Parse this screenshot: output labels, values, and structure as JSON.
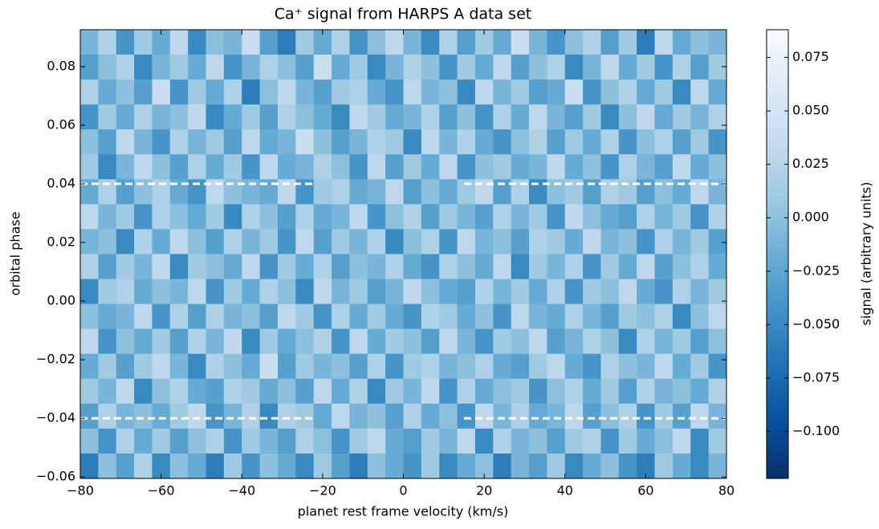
{
  "chart_data": {
    "type": "heatmap",
    "title": "Ca⁺ signal from HARPS A data set",
    "xlabel": "planet rest frame velocity (km/s)",
    "ylabel": "orbital phase",
    "colorbar_label": "signal (arbitrary units)",
    "xlim": [
      -80,
      80
    ],
    "ylim": [
      -0.0605,
      0.0926
    ],
    "clim": [
      -0.122,
      0.088
    ],
    "xticks": [
      {
        "value": -80,
        "label": "−80"
      },
      {
        "value": -60,
        "label": "−60"
      },
      {
        "value": -40,
        "label": "−40"
      },
      {
        "value": -20,
        "label": "−20"
      },
      0,
      20,
      40,
      60,
      80
    ],
    "yticks": [
      {
        "value": -0.06,
        "label": "−0.06"
      },
      {
        "value": -0.04,
        "label": "−0.04"
      },
      {
        "value": -0.02,
        "label": "−0.02"
      },
      {
        "value": 0,
        "label": "0.00"
      },
      {
        "value": 0.02,
        "label": "0.02"
      },
      {
        "value": 0.04,
        "label": "0.04"
      },
      {
        "value": 0.06,
        "label": "0.06"
      },
      {
        "value": 0.08,
        "label": "0.08"
      }
    ],
    "cticks": [
      {
        "value": -0.1,
        "label": "−0.100"
      },
      {
        "value": -0.075,
        "label": "−0.075"
      },
      {
        "value": -0.05,
        "label": "−0.050"
      },
      {
        "value": -0.025,
        "label": "−0.025"
      },
      {
        "value": 0,
        "label": "0.000"
      },
      {
        "value": 0.025,
        "label": "0.025"
      },
      {
        "value": 0.05,
        "label": "0.050"
      },
      {
        "value": 0.075,
        "label": "0.075"
      }
    ],
    "colormap": [
      "#08306b",
      "#08519c",
      "#2171b5",
      "#4292c6",
      "#6baed6",
      "#9ecae1",
      "#c6dbef",
      "#deebf7",
      "#f7fbff"
    ],
    "dash_color": "#ffffff",
    "dashes": [
      {
        "y": 0.04,
        "x0": -80,
        "x1": -22
      },
      {
        "y": 0.04,
        "x0": 15,
        "x1": 80
      },
      {
        "y": -0.04,
        "x0": -80,
        "x1": -22
      },
      {
        "y": -0.04,
        "x0": 15,
        "x1": 80
      }
    ],
    "z": [
      [
        -0.01,
        0.02,
        -0.04,
        0.01,
        -0.02,
        0.03,
        -0.05,
        0.0,
        -0.01,
        0.04,
        -0.03,
        -0.06,
        0.01,
        -0.02,
        0.02,
        -0.04,
        0.0,
        0.03,
        -0.01,
        -0.05,
        0.02,
        -0.03,
        0.01,
        -0.02,
        0.04,
        -0.01,
        -0.04,
        0.0,
        0.02,
        -0.03,
        0.01,
        -0.06,
        0.03,
        -0.02,
        0.0,
        -0.01
      ],
      [
        -0.03,
        0.0,
        0.02,
        -0.05,
        -0.01,
        0.01,
        -0.02,
        0.03,
        -0.04,
        -0.01,
        0.02,
        0.0,
        -0.03,
        0.04,
        -0.02,
        0.01,
        -0.05,
        -0.01,
        0.02,
        0.0,
        -0.04,
        0.01,
        -0.02,
        0.03,
        -0.03,
        0.0,
        0.02,
        -0.05,
        -0.01,
        0.03,
        -0.02,
        0.01,
        -0.04,
        0.02,
        -0.03,
        0.01
      ],
      [
        0.02,
        -0.02,
        0.0,
        -0.03,
        0.04,
        -0.04,
        0.01,
        -0.02,
        0.02,
        -0.06,
        0.0,
        0.03,
        -0.01,
        -0.03,
        0.01,
        0.02,
        -0.02,
        -0.04,
        0.03,
        -0.01,
        0.0,
        -0.05,
        0.03,
        -0.01,
        0.01,
        -0.03,
        -0.02,
        0.04,
        -0.04,
        0.0,
        0.02,
        -0.02,
        0.01,
        -0.05,
        0.03,
        -0.02
      ],
      [
        -0.04,
        0.01,
        -0.02,
        0.02,
        -0.01,
        0.0,
        0.03,
        -0.05,
        -0.02,
        0.01,
        -0.03,
        0.02,
        0.0,
        -0.02,
        -0.05,
        0.03,
        0.01,
        -0.02,
        -0.01,
        0.02,
        -0.03,
        0.0,
        -0.04,
        0.02,
        -0.02,
        0.03,
        -0.01,
        -0.03,
        0.01,
        -0.05,
        0.0,
        0.03,
        -0.02,
        0.01,
        -0.01,
        0.02
      ],
      [
        0.0,
        -0.03,
        0.03,
        -0.01,
        -0.04,
        0.02,
        -0.01,
        0.01,
        -0.03,
        0.03,
        -0.02,
        -0.01,
        0.04,
        0.0,
        -0.03,
        -0.01,
        0.02,
        0.01,
        -0.05,
        0.03,
        -0.01,
        0.02,
        -0.02,
        -0.04,
        0.0,
        0.02,
        -0.03,
        0.01,
        -0.02,
        0.02,
        -0.04,
        0.0,
        0.02,
        -0.03,
        0.01,
        -0.04
      ],
      [
        0.01,
        -0.05,
        -0.01,
        0.03,
        0.0,
        -0.03,
        0.02,
        -0.02,
        0.01,
        -0.04,
        0.03,
        -0.02,
        -0.01,
        0.02,
        0.0,
        -0.04,
        0.03,
        -0.03,
        0.01,
        -0.02,
        0.03,
        -0.04,
        0.0,
        0.01,
        -0.02,
        -0.01,
        0.03,
        -0.02,
        0.0,
        -0.04,
        0.02,
        -0.01,
        -0.03,
        0.03,
        -0.02,
        0.0
      ],
      [
        -0.02,
        0.02,
        -0.03,
        0.0,
        0.02,
        -0.02,
        -0.04,
        0.03,
        0.0,
        -0.01,
        -0.02,
        0.03,
        -0.04,
        0.01,
        0.02,
        -0.02,
        -0.01,
        0.03,
        -0.03,
        0.0,
        -0.02,
        0.01,
        0.03,
        -0.03,
        0.02,
        -0.05,
        0.0,
        0.01,
        -0.03,
        0.02,
        0.01,
        -0.03,
        0.0,
        -0.02,
        0.03,
        -0.01
      ],
      [
        0.03,
        -0.01,
        0.01,
        -0.04,
        0.02,
        0.0,
        -0.02,
        0.01,
        -0.05,
        0.02,
        0.0,
        -0.03,
        0.02,
        -0.02,
        -0.01,
        0.03,
        -0.04,
        0.0,
        0.02,
        -0.03,
        0.01,
        -0.01,
        -0.03,
        0.02,
        -0.01,
        0.01,
        -0.04,
        0.03,
        0.0,
        -0.02,
        -0.03,
        0.02,
        -0.01,
        0.01,
        -0.04,
        0.02
      ],
      [
        -0.01,
        0.0,
        -0.05,
        0.02,
        -0.02,
        0.03,
        0.0,
        -0.03,
        0.02,
        -0.01,
        0.01,
        -0.04,
        0.03,
        -0.03,
        0.01,
        -0.01,
        0.02,
        -0.05,
        0.0,
        0.02,
        -0.04,
        0.03,
        -0.01,
        0.0,
        -0.03,
        0.02,
        0.01,
        -0.02,
        0.03,
        -0.01,
        0.0,
        -0.04,
        0.02,
        -0.01,
        0.01,
        -0.03
      ],
      [
        0.02,
        -0.03,
        0.01,
        -0.01,
        0.03,
        -0.05,
        0.01,
        0.0,
        -0.02,
        0.03,
        -0.04,
        0.01,
        -0.02,
        0.02,
        -0.03,
        0.0,
        -0.01,
        0.02,
        -0.02,
        -0.04,
        0.02,
        0.0,
        -0.02,
        0.03,
        -0.05,
        0.01,
        -0.01,
        0.02,
        -0.04,
        0.01,
        -0.02,
        0.03,
        -0.03,
        0.0,
        0.02,
        -0.02
      ],
      [
        -0.05,
        0.01,
        0.02,
        -0.02,
        0.0,
        -0.01,
        0.03,
        -0.04,
        0.01,
        -0.02,
        0.02,
        0.0,
        -0.05,
        0.03,
        -0.01,
        0.01,
        -0.03,
        -0.01,
        0.03,
        0.0,
        -0.02,
        -0.03,
        0.02,
        -0.01,
        0.01,
        -0.02,
        0.02,
        -0.04,
        0.01,
        0.0,
        0.03,
        -0.02,
        -0.04,
        0.02,
        -0.01,
        0.01
      ],
      [
        0.0,
        -0.02,
        -0.01,
        0.03,
        -0.04,
        0.02,
        -0.03,
        0.02,
        -0.01,
        0.0,
        -0.03,
        0.03,
        0.01,
        -0.04,
        0.02,
        -0.02,
        0.01,
        -0.02,
        -0.04,
        0.02,
        0.01,
        -0.02,
        0.0,
        -0.04,
        0.03,
        -0.01,
        -0.02,
        0.02,
        -0.01,
        -0.03,
        0.01,
        0.0,
        0.02,
        -0.05,
        0.0,
        0.03
      ],
      [
        0.03,
        -0.04,
        0.0,
        -0.02,
        0.01,
        -0.03,
        0.02,
        -0.01,
        0.03,
        -0.05,
        0.01,
        -0.02,
        0.0,
        0.02,
        -0.04,
        0.03,
        -0.02,
        0.01,
        0.0,
        -0.03,
        0.03,
        -0.01,
        -0.04,
        0.01,
        0.0,
        0.03,
        -0.03,
        -0.01,
        0.02,
        0.0,
        -0.05,
        0.02,
        -0.01,
        0.01,
        -0.03,
        0.0
      ],
      [
        -0.02,
        0.01,
        -0.03,
        0.01,
        0.03,
        -0.01,
        -0.05,
        0.02,
        0.0,
        -0.02,
        0.04,
        -0.03,
        0.01,
        -0.01,
        0.0,
        -0.03,
        0.02,
        -0.04,
        0.01,
        0.02,
        -0.01,
        0.0,
        0.02,
        -0.02,
        -0.03,
        0.01,
        0.03,
        -0.02,
        -0.04,
        0.02,
        0.0,
        -0.01,
        0.03,
        -0.02,
        0.01,
        -0.04
      ],
      [
        0.01,
        -0.01,
        0.03,
        -0.05,
        0.0,
        0.02,
        -0.02,
        -0.03,
        0.02,
        0.01,
        -0.02,
        0.0,
        -0.03,
        0.03,
        -0.02,
        0.02,
        -0.05,
        0.01,
        -0.01,
        0.03,
        -0.04,
        0.02,
        -0.02,
        0.0,
        0.01,
        -0.04,
        0.0,
        0.02,
        -0.02,
        0.01,
        -0.03,
        0.02,
        -0.01,
        0.0,
        -0.02,
        0.02
      ],
      [
        -0.03,
        0.02,
        -0.01,
        0.0,
        -0.02,
        0.01,
        0.03,
        -0.04,
        -0.01,
        0.02,
        -0.05,
        0.02,
        0.01,
        -0.02,
        0.03,
        -0.01,
        0.0,
        -0.03,
        0.02,
        -0.02,
        0.0,
        -0.04,
        0.03,
        -0.01,
        0.02,
        -0.02,
        -0.01,
        0.03,
        -0.03,
        0.0,
        0.02,
        -0.04,
        0.01,
        -0.03,
        0.03,
        -0.01
      ],
      [
        0.0,
        -0.04,
        0.02,
        -0.02,
        0.01,
        -0.03,
        0.0,
        0.02,
        -0.04,
        0.01,
        -0.01,
        -0.03,
        0.02,
        0.0,
        -0.04,
        0.01,
        0.03,
        -0.02,
        -0.03,
        0.01,
        -0.01,
        0.03,
        -0.05,
        0.02,
        -0.01,
        0.0,
        -0.03,
        0.01,
        0.02,
        -0.04,
        0.01,
        -0.02,
        0.0,
        0.03,
        -0.05,
        0.01
      ],
      [
        -0.06,
        0.0,
        -0.03,
        0.02,
        -0.05,
        0.0,
        -0.02,
        -0.06,
        0.01,
        -0.04,
        0.0,
        -0.02,
        -0.05,
        0.01,
        -0.03,
        -0.06,
        0.0,
        -0.02,
        -0.04,
        0.01,
        -0.05,
        -0.02,
        0.0,
        -0.06,
        -0.01,
        -0.03,
        0.01,
        -0.05,
        -0.02,
        0.0,
        -0.04,
        -0.06,
        0.01,
        -0.02,
        -0.05,
        -0.01
      ]
    ]
  }
}
